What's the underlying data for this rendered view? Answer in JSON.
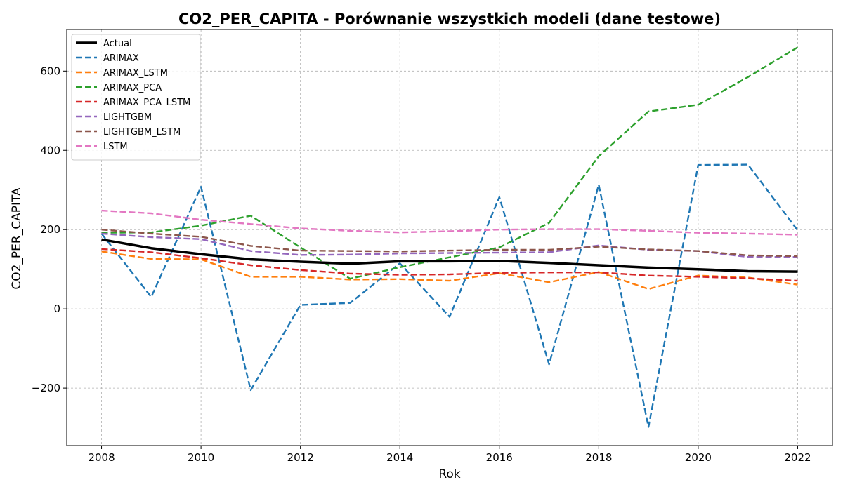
{
  "chart_data": {
    "type": "line",
    "title": "CO2_PER_CAPITA - Porównanie wszystkich modeli (dane testowe)",
    "xlabel": "Rok",
    "ylabel": "CO2_PER_CAPITA",
    "xlim": [
      2007.3,
      2022.7
    ],
    "ylim": [
      -345,
      705
    ],
    "xticks": [
      2008,
      2010,
      2012,
      2014,
      2016,
      2018,
      2020,
      2022
    ],
    "xtick_labels": [
      "2008",
      "2010",
      "2012",
      "2014",
      "2016",
      "2018",
      "2020",
      "2022"
    ],
    "yticks": [
      -200,
      0,
      200,
      400,
      600
    ],
    "ytick_labels": [
      "−200",
      "0",
      "200",
      "400",
      "600"
    ],
    "grid": true,
    "legend_position": "top-left",
    "x": [
      2008,
      2009,
      2010,
      2011,
      2012,
      2013,
      2014,
      2015,
      2016,
      2017,
      2018,
      2019,
      2020,
      2021,
      2022
    ],
    "series": [
      {
        "name": "Actual",
        "color": "#000000",
        "style": "solid",
        "values": [
          175,
          153,
          138,
          125,
          119,
          114,
          120,
          120,
          121,
          116,
          110,
          104,
          100,
          95,
          94
        ]
      },
      {
        "name": "ARIMAX",
        "color": "#1f77b4",
        "style": "dashed",
        "values": [
          190,
          30,
          308,
          -205,
          10,
          15,
          115,
          -20,
          282,
          -140,
          313,
          -298,
          363,
          364,
          198
        ]
      },
      {
        "name": "ARIMAX_LSTM",
        "color": "#ff7f0e",
        "style": "dashed",
        "values": [
          145,
          126,
          125,
          81,
          81,
          74,
          75,
          71,
          90,
          67,
          93,
          50,
          84,
          79,
          61
        ]
      },
      {
        "name": "ARIMAX_PCA",
        "color": "#2ca02c",
        "style": "dashed",
        "values": [
          192,
          193,
          210,
          235,
          155,
          76,
          105,
          130,
          155,
          217,
          385,
          498,
          515,
          585,
          660
        ]
      },
      {
        "name": "ARIMAX_PCA_LSTM",
        "color": "#d62728",
        "style": "dashed",
        "values": [
          151,
          143,
          128,
          110,
          98,
          89,
          86,
          87,
          91,
          92,
          92,
          84,
          81,
          77,
          71
        ]
      },
      {
        "name": "LIGHTGBM",
        "color": "#9467bd",
        "style": "dashed",
        "values": [
          190,
          181,
          176,
          146,
          136,
          137,
          140,
          141,
          142,
          143,
          160,
          149,
          146,
          131,
          131
        ]
      },
      {
        "name": "LIGHTGBM_LSTM",
        "color": "#8c564b",
        "style": "dashed",
        "values": [
          200,
          190,
          182,
          159,
          147,
          146,
          145,
          147,
          149,
          149,
          157,
          150,
          146,
          135,
          133
        ]
      },
      {
        "name": "LSTM",
        "color": "#e377c2",
        "style": "dashed",
        "values": [
          248,
          241,
          225,
          214,
          203,
          197,
          193,
          196,
          200,
          201,
          201,
          197,
          192,
          190,
          187
        ]
      }
    ]
  }
}
